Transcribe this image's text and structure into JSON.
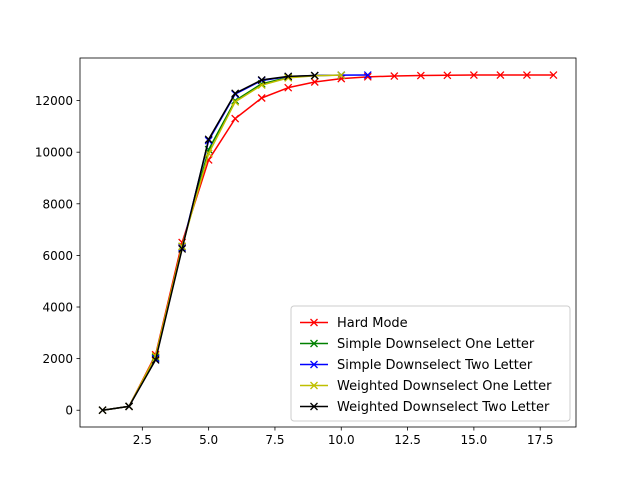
{
  "chart_data": {
    "type": "line",
    "title": "",
    "xlabel": "",
    "ylabel": "",
    "xlim": [
      0.15,
      18.85
    ],
    "ylim": [
      -650,
      13650
    ],
    "x_ticks": [
      2.5,
      5.0,
      7.5,
      10.0,
      12.5,
      15.0,
      17.5
    ],
    "x_tick_labels": [
      "2.5",
      "5.0",
      "7.5",
      "10.0",
      "12.5",
      "15.0",
      "17.5"
    ],
    "y_ticks": [
      0,
      2000,
      4000,
      6000,
      8000,
      10000,
      12000
    ],
    "y_tick_labels": [
      "0",
      "2000",
      "4000",
      "6000",
      "8000",
      "10000",
      "12000"
    ],
    "grid": false,
    "legend_position": "lower-right",
    "marker": "x",
    "series": [
      {
        "name": "Hard Mode",
        "color": "#ff0000",
        "x": [
          1,
          2,
          3,
          4,
          5,
          6,
          7,
          8,
          9,
          10,
          11,
          12,
          13,
          14,
          15,
          16,
          17,
          18
        ],
        "y": [
          0,
          150,
          2150,
          6500,
          9700,
          11300,
          12100,
          12500,
          12720,
          12850,
          12920,
          12950,
          12970,
          12980,
          12990,
          12990,
          12990,
          12990
        ]
      },
      {
        "name": "Simple Downselect One Letter",
        "color": "#008000",
        "x": [
          1,
          2,
          3,
          4,
          5,
          6,
          7,
          8,
          9,
          10
        ],
        "y": [
          0,
          150,
          2050,
          6350,
          10100,
          12000,
          12650,
          12900,
          12970,
          12985
        ]
      },
      {
        "name": "Simple Downselect Two Letter",
        "color": "#0000ff",
        "x": [
          1,
          2,
          3,
          4,
          5,
          6,
          7,
          8,
          9,
          10,
          11
        ],
        "y": [
          0,
          150,
          2000,
          6300,
          10450,
          12250,
          12780,
          12930,
          12970,
          12985,
          12990
        ]
      },
      {
        "name": "Weighted Downselect One Letter",
        "color": "#bfbf00",
        "x": [
          1,
          2,
          3,
          4,
          5,
          6,
          7,
          8,
          9,
          10
        ],
        "y": [
          0,
          150,
          2100,
          6350,
          9950,
          11950,
          12600,
          12880,
          12960,
          12985
        ]
      },
      {
        "name": "Weighted Downselect Two Letter",
        "color": "#000000",
        "x": [
          1,
          2,
          3,
          4,
          5,
          6,
          7,
          8,
          9
        ],
        "y": [
          0,
          150,
          1950,
          6250,
          10500,
          12280,
          12800,
          12940,
          12970
        ]
      }
    ]
  }
}
